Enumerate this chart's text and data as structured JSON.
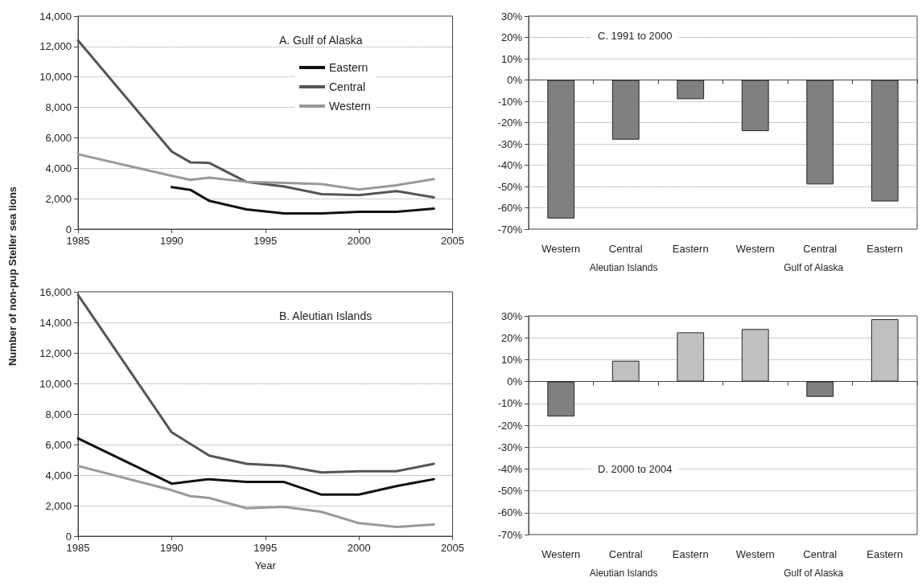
{
  "chart_data": [
    {
      "type": "line",
      "title": "A. Gulf of Alaska",
      "ylabel": "Number of non-pup Steller sea lions",
      "xlim": [
        1985,
        2005
      ],
      "xticks": [
        1985,
        1990,
        1995,
        2000,
        2005
      ],
      "ylim": [
        0,
        14000
      ],
      "yticks": [
        0,
        {
          "value": 2000,
          "label": "2,000"
        },
        {
          "value": 4000,
          "label": "4,000"
        },
        {
          "value": 6000,
          "label": "6,000"
        },
        {
          "value": 8000,
          "label": "8,000"
        },
        {
          "value": 10000,
          "label": "10,000"
        },
        {
          "value": 12000,
          "label": "12,000"
        },
        {
          "value": 14000,
          "label": "14,000"
        }
      ],
      "grid": "y",
      "legend": "top right",
      "marker": "none",
      "line_style": "solid",
      "series": [
        {
          "name": "Eastern",
          "color": "#111111",
          "x": [
            1990,
            1991,
            1992,
            1994,
            1996,
            1998,
            2000,
            2002,
            2004
          ],
          "values": [
            2760,
            2580,
            1860,
            1290,
            1030,
            1030,
            1130,
            1130,
            1350
          ]
        },
        {
          "name": "Central",
          "color": "#555555",
          "x": [
            1985,
            1990,
            1991,
            1992,
            1994,
            1996,
            1998,
            2000,
            2002,
            2004
          ],
          "values": [
            12400,
            5100,
            4390,
            4350,
            3100,
            2800,
            2300,
            2230,
            2500,
            2090
          ]
        },
        {
          "name": "Western",
          "color": "#999999",
          "x": [
            1985,
            1990,
            1991,
            1992,
            1994,
            1996,
            1998,
            2000,
            2002,
            2004
          ],
          "values": [
            4920,
            3500,
            3240,
            3380,
            3110,
            3040,
            2960,
            2600,
            2880,
            3290
          ]
        }
      ]
    },
    {
      "type": "line",
      "title": "B. Aleutian Islands",
      "xlabel": "Year",
      "xlim": [
        1985,
        2005
      ],
      "xticks": [
        1985,
        1990,
        1995,
        2000,
        2005
      ],
      "ylim": [
        0,
        16000
      ],
      "yticks": [
        0,
        {
          "value": 2000,
          "label": "2,000"
        },
        {
          "value": 4000,
          "label": "4,000"
        },
        {
          "value": 6000,
          "label": "6,000"
        },
        {
          "value": 8000,
          "label": "8,000"
        },
        {
          "value": 10000,
          "label": "10,000"
        },
        {
          "value": 12000,
          "label": "12,000"
        },
        {
          "value": 14000,
          "label": "14,000"
        },
        {
          "value": 16000,
          "label": "16,000"
        }
      ],
      "grid": "y",
      "marker": "none",
      "line_style": "solid",
      "series": [
        {
          "color": "#111111",
          "x": [
            1985,
            1990,
            1992,
            1994,
            1996,
            1998,
            2000,
            2002,
            2004
          ],
          "values": [
            6400,
            3440,
            3730,
            3550,
            3550,
            2720,
            2720,
            3280,
            3730
          ]
        },
        {
          "color": "#555555",
          "x": [
            1985,
            1990,
            1992,
            1994,
            1996,
            1998,
            2000,
            2002,
            2004
          ],
          "values": [
            15800,
            6800,
            5280,
            4740,
            4600,
            4170,
            4250,
            4250,
            4740
          ]
        },
        {
          "color": "#999999",
          "x": [
            1985,
            1990,
            1991,
            1992,
            1994,
            1996,
            1998,
            2000,
            2002,
            2004
          ],
          "values": [
            4600,
            3010,
            2620,
            2500,
            1830,
            1920,
            1590,
            850,
            600,
            760
          ]
        }
      ]
    },
    {
      "type": "bar",
      "title": "C. 1991 to 2000",
      "categories": [
        "Western",
        "Central",
        "Eastern",
        "Western",
        "Central",
        "Eastern"
      ],
      "values": [
        -65,
        -28,
        -9,
        -24,
        -49,
        -57
      ],
      "colors": [
        "#808080",
        "#808080",
        "#808080",
        "#808080",
        "#808080",
        "#808080"
      ],
      "ylim": [
        -70,
        30
      ],
      "yticks": [
        {
          "value": -70,
          "label": "-70%"
        },
        {
          "value": -60,
          "label": "-60%"
        },
        {
          "value": -50,
          "label": "-50%"
        },
        {
          "value": -40,
          "label": "-40%"
        },
        {
          "value": -30,
          "label": "-30%"
        },
        {
          "value": -20,
          "label": "-20%"
        },
        {
          "value": -10,
          "label": "-10%"
        },
        {
          "value": 0,
          "label": "0%"
        },
        {
          "value": 10,
          "label": "10%"
        },
        {
          "value": 20,
          "label": "20%"
        },
        {
          "value": 30,
          "label": "30%"
        }
      ],
      "grid": "y",
      "annotations": [
        "Aleutian Islands",
        "Gulf of Alaska"
      ]
    },
    {
      "type": "bar",
      "title": "D. 2000 to 2004",
      "categories": [
        "Western",
        "Central",
        "Eastern",
        "Western",
        "Central",
        "Eastern"
      ],
      "values": [
        -16,
        9.5,
        22.5,
        24,
        -7,
        28.5
      ],
      "colors": [
        "#808080",
        "#c0c0c0",
        "#c0c0c0",
        "#c0c0c0",
        "#808080",
        "#c0c0c0"
      ],
      "ylim": [
        -70,
        30
      ],
      "yticks": [
        {
          "value": -70,
          "label": "-70%"
        },
        {
          "value": -60,
          "label": "-60%"
        },
        {
          "value": -50,
          "label": "-50%"
        },
        {
          "value": -40,
          "label": "-40%"
        },
        {
          "value": -30,
          "label": "-30%"
        },
        {
          "value": -20,
          "label": "-20%"
        },
        {
          "value": -10,
          "label": "-10%"
        },
        {
          "value": 0,
          "label": "0%"
        },
        {
          "value": 10,
          "label": "10%"
        },
        {
          "value": 20,
          "label": "20%"
        },
        {
          "value": 30,
          "label": "30%"
        }
      ],
      "grid": "y",
      "annotations": [
        "Aleutian Islands",
        "Gulf of Alaska"
      ]
    }
  ]
}
